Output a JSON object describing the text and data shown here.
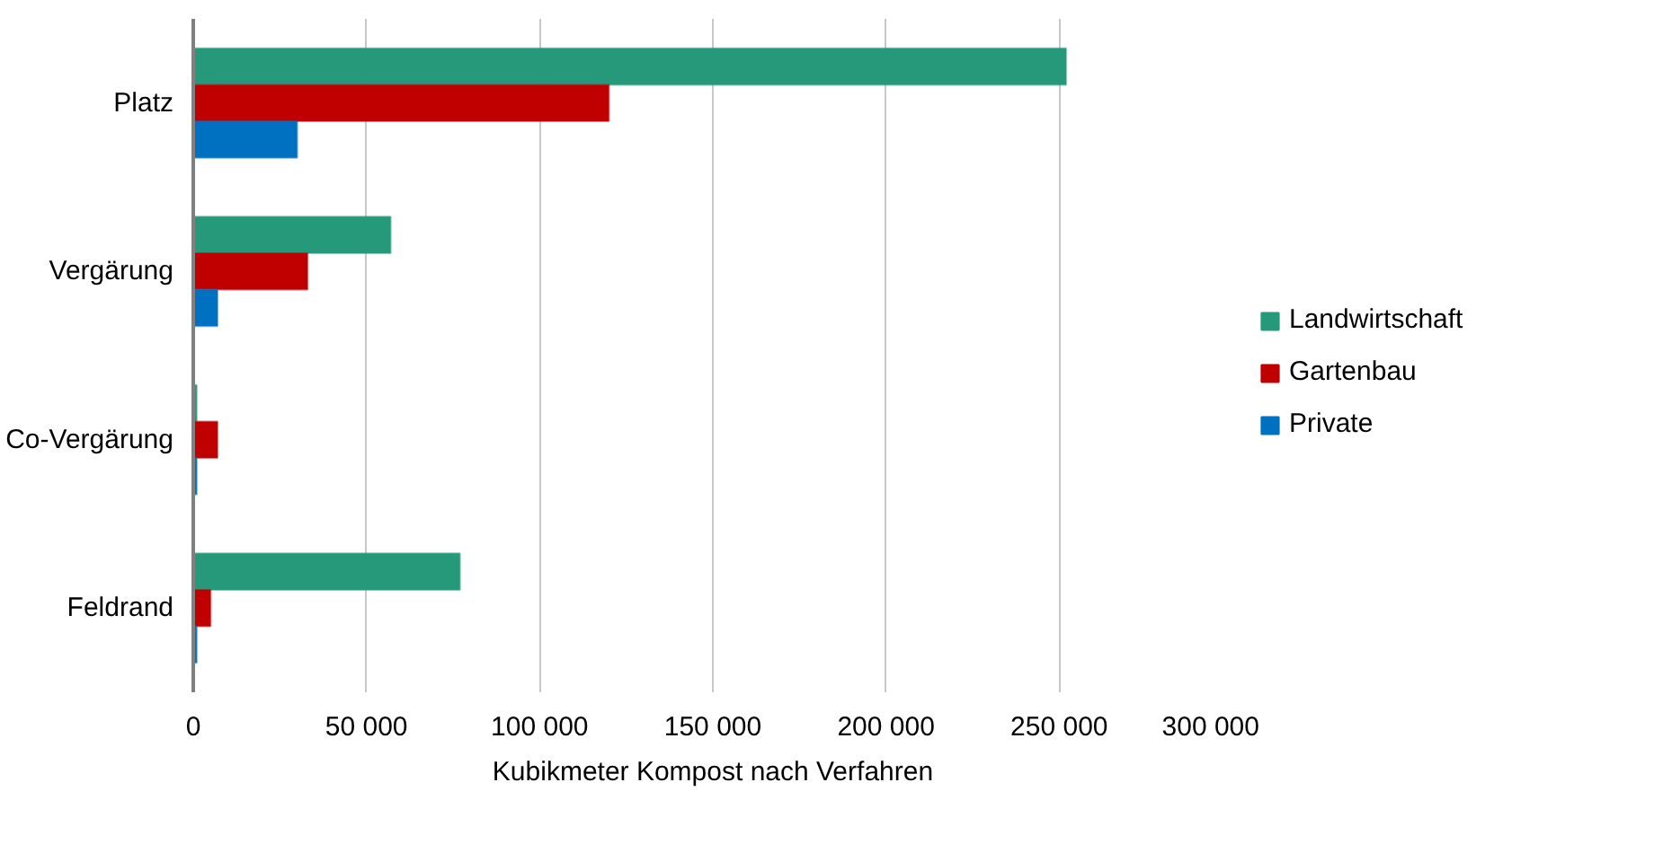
{
  "chart_data": {
    "type": "bar",
    "orientation": "horizontal",
    "xlabel": "Kubikmeter Kompost nach Verfahren",
    "categories": [
      "Platz",
      "Vergärung",
      "Co-Vergärung",
      "Feldrand"
    ],
    "series": [
      {
        "name": "Landwirtschaft",
        "color": "#26997a",
        "values": [
          252000,
          57000,
          1000,
          77000
        ]
      },
      {
        "name": "Gartenbau",
        "color": "#c00000",
        "values": [
          120000,
          33000,
          7000,
          5000
        ]
      },
      {
        "name": "Private",
        "color": "#0070c0",
        "values": [
          30000,
          7000,
          1000,
          1000
        ]
      }
    ],
    "xlim": [
      0,
      300000
    ],
    "xticks": [
      0,
      {
        "value": 50000,
        "label": "50 000"
      },
      {
        "value": 100000,
        "label": "100 000"
      },
      {
        "value": 150000,
        "label": "150 000"
      },
      {
        "value": 200000,
        "label": "200 000"
      },
      {
        "value": 250000,
        "label": "250 000"
      },
      {
        "value": 300000,
        "label": "300 000"
      }
    ],
    "grid": "x",
    "legend": "right"
  }
}
